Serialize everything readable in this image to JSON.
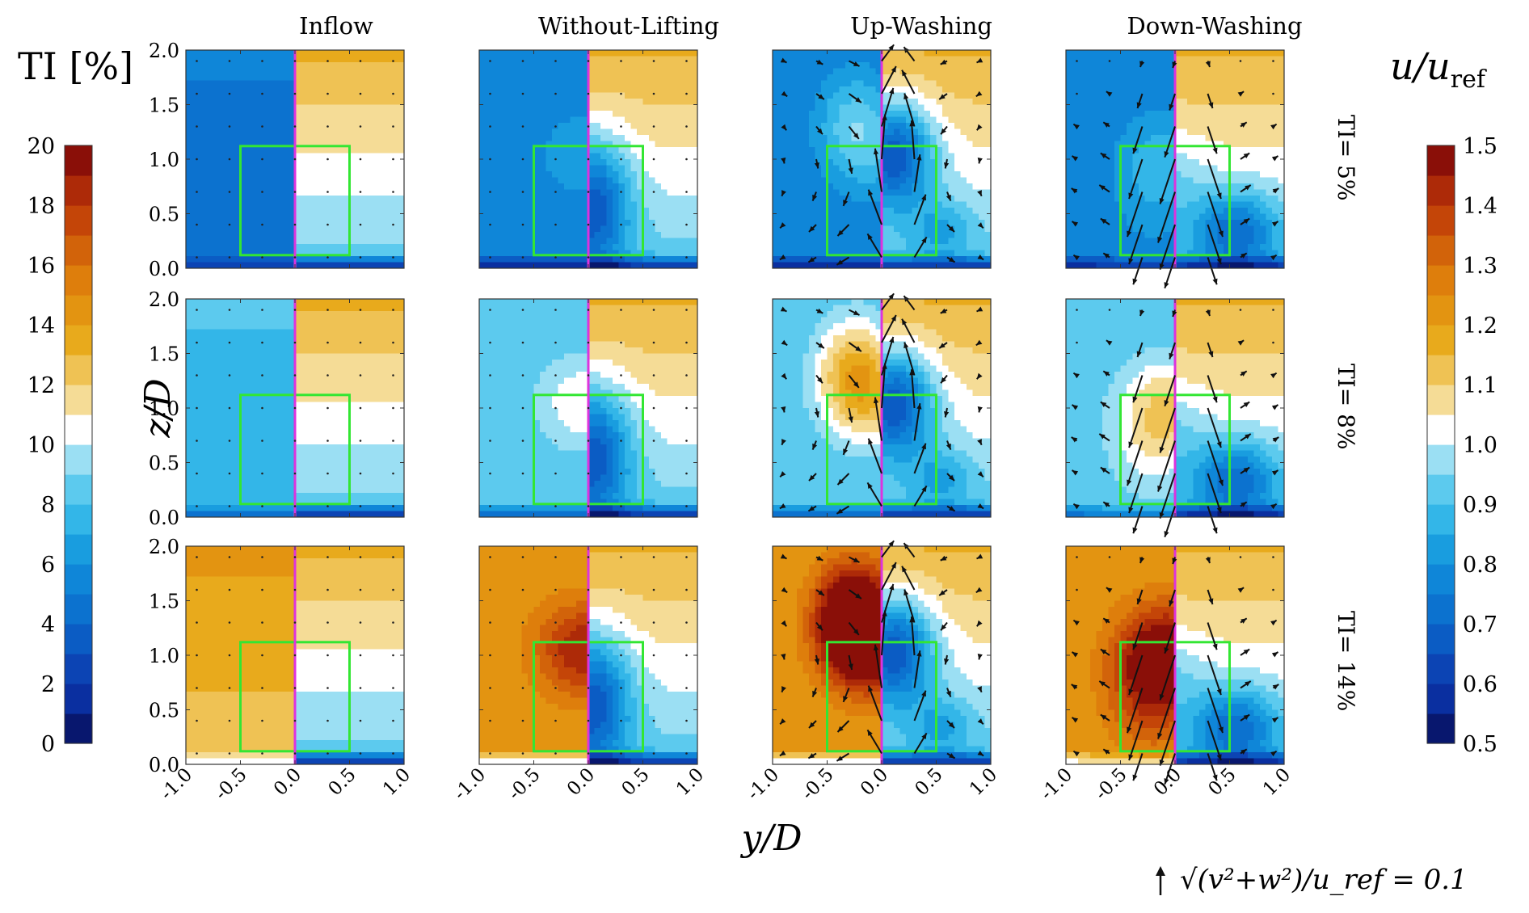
{
  "chart_data": {
    "type": "heatmap",
    "description_layout": "4x3 grid of contour panels; left half of each panel = TI, right half = u/u_ref, arrows = in-plane (v,w) velocity",
    "columns": [
      "Inflow",
      "Without-Lifting",
      "Up-Washing",
      "Down-Washing"
    ],
    "rows": [
      "TI= 5%",
      "TI= 8%",
      "TI= 14%"
    ],
    "xlabel": "y/D",
    "ylabel": "z/D",
    "xlim": [
      -1.0,
      1.0
    ],
    "ylim": [
      0.0,
      2.0
    ],
    "xticks": [
      "-1.0",
      "-0.5",
      "0.0",
      "0.5",
      "1.0"
    ],
    "yticks": [
      "0.0",
      "0.5",
      "1.0",
      "1.5",
      "2.0"
    ],
    "rotor_box": {
      "y": [
        -0.5,
        0.5
      ],
      "z": [
        0.12,
        1.12
      ],
      "color": "#33e633"
    },
    "centerline_color": "#dd33dd",
    "left_colorbar": {
      "label": "TI [%]",
      "range": [
        0,
        20
      ],
      "ticks": [
        "0",
        "2",
        "4",
        "6",
        "8",
        "10",
        "12",
        "14",
        "16",
        "18",
        "20"
      ],
      "levels": 20
    },
    "right_colorbar": {
      "label": "u/u_ref",
      "range": [
        0.5,
        1.5
      ],
      "ticks": [
        "0.5",
        "0.6",
        "0.7",
        "0.8",
        "0.9",
        "1.0",
        "1.1",
        "1.2",
        "1.3",
        "1.4",
        "1.5"
      ],
      "levels": 20
    },
    "palette": [
      "#08176e",
      "#0a2fa0",
      "#0c44b4",
      "#0b5cc4",
      "#0c72cf",
      "#0f86d8",
      "#199ddf",
      "#33b6e8",
      "#5ccaee",
      "#9bdff3",
      "#ffffff",
      "#f5dc96",
      "#efc254",
      "#e8aa1c",
      "#e39411",
      "#de7e0c",
      "#d2630a",
      "#c44508",
      "#ad2a08",
      "#8a0f08"
    ],
    "ti_level": {
      "TI= 5%": 5,
      "TI= 8%": 8,
      "TI= 14%": 14
    },
    "vector_scale": {
      "label": "√(v²+w²)/u_ref = 0.1",
      "reference": 0.1
    }
  }
}
